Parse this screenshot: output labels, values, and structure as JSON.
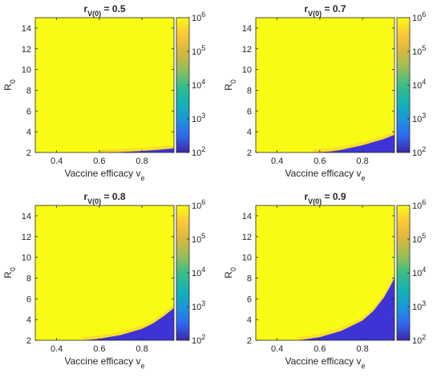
{
  "figure": {
    "panel_count": 4
  },
  "chart_data": [
    {
      "type": "heatmap",
      "title": "r",
      "title_sub": "V(0)",
      "title_value": " = 0.5",
      "xlabel": "Vaccine efficacy v",
      "xlabel_sub": "e",
      "ylabel": "R",
      "ylabel_sub": "0",
      "xlim": [
        0.3,
        0.95
      ],
      "ylim": [
        2,
        15
      ],
      "xticks": [
        0.4,
        0.6,
        0.8
      ],
      "xtick_labels": [
        "0.4",
        "0.6",
        "0.8"
      ],
      "yticks": [
        2,
        4,
        6,
        8,
        10,
        12,
        14
      ],
      "ytick_labels": [
        "2",
        "4",
        "6",
        "8",
        "10",
        "12",
        "14"
      ],
      "color_scale": "log",
      "colorbar_range": [
        100,
        1000000
      ],
      "colorbar_ticks": [
        {
          "base": "10",
          "exp": "2"
        },
        {
          "base": "10",
          "exp": "3"
        },
        {
          "base": "10",
          "exp": "4"
        },
        {
          "base": "10",
          "exp": "5"
        },
        {
          "base": "10",
          "exp": "6"
        }
      ],
      "colormap": [
        "#3e26a8",
        "#2f69f1",
        "#1a98d9",
        "#13b4b1",
        "#3bbd86",
        "#98be57",
        "#d8b83f",
        "#fcc737",
        "#f9fb15"
      ],
      "high_region_color": "#f9fb15",
      "low_region_color": "#3e34d6",
      "boundary": {
        "x": [
          0.6,
          0.7,
          0.8,
          0.9,
          0.95
        ],
        "y": [
          2.0,
          2.05,
          2.15,
          2.3,
          2.4
        ]
      }
    },
    {
      "type": "heatmap",
      "title": "r",
      "title_sub": "V(0)",
      "title_value": " = 0.7",
      "xlabel": "Vaccine efficacy v",
      "xlabel_sub": "e",
      "ylabel": "R",
      "ylabel_sub": "0",
      "xlim": [
        0.3,
        0.95
      ],
      "ylim": [
        2,
        15
      ],
      "xticks": [
        0.4,
        0.6,
        0.8
      ],
      "xtick_labels": [
        "0.4",
        "0.6",
        "0.8"
      ],
      "yticks": [
        2,
        4,
        6,
        8,
        10,
        12,
        14
      ],
      "ytick_labels": [
        "2",
        "4",
        "6",
        "8",
        "10",
        "12",
        "14"
      ],
      "color_scale": "log",
      "colorbar_range": [
        100,
        1000000
      ],
      "colorbar_ticks": [
        {
          "base": "10",
          "exp": "2"
        },
        {
          "base": "10",
          "exp": "3"
        },
        {
          "base": "10",
          "exp": "4"
        },
        {
          "base": "10",
          "exp": "5"
        },
        {
          "base": "10",
          "exp": "6"
        }
      ],
      "colormap": [
        "#3e26a8",
        "#2f69f1",
        "#1a98d9",
        "#13b4b1",
        "#3bbd86",
        "#98be57",
        "#d8b83f",
        "#fcc737",
        "#f9fb15"
      ],
      "high_region_color": "#f9fb15",
      "low_region_color": "#3e34d6",
      "boundary": {
        "x": [
          0.57,
          0.65,
          0.7,
          0.8,
          0.9,
          0.95
        ],
        "y": [
          2.0,
          2.1,
          2.25,
          2.7,
          3.3,
          3.7
        ]
      }
    },
    {
      "type": "heatmap",
      "title": "r",
      "title_sub": "V(0)",
      "title_value": " = 0.8",
      "xlabel": "Vaccine efficacy v",
      "xlabel_sub": "e",
      "ylabel": "R",
      "ylabel_sub": "0",
      "xlim": [
        0.3,
        0.95
      ],
      "ylim": [
        2,
        15
      ],
      "xticks": [
        0.4,
        0.6,
        0.8
      ],
      "xtick_labels": [
        "0.4",
        "0.6",
        "0.8"
      ],
      "yticks": [
        2,
        4,
        6,
        8,
        10,
        12,
        14
      ],
      "ytick_labels": [
        "2",
        "4",
        "6",
        "8",
        "10",
        "12",
        "14"
      ],
      "color_scale": "log",
      "colorbar_range": [
        100,
        1000000
      ],
      "colorbar_ticks": [
        {
          "base": "10",
          "exp": "2"
        },
        {
          "base": "10",
          "exp": "3"
        },
        {
          "base": "10",
          "exp": "4"
        },
        {
          "base": "10",
          "exp": "5"
        },
        {
          "base": "10",
          "exp": "6"
        }
      ],
      "colormap": [
        "#3e26a8",
        "#2f69f1",
        "#1a98d9",
        "#13b4b1",
        "#3bbd86",
        "#98be57",
        "#d8b83f",
        "#fcc737",
        "#f9fb15"
      ],
      "high_region_color": "#f9fb15",
      "low_region_color": "#3e34d6",
      "boundary": {
        "x": [
          0.52,
          0.6,
          0.7,
          0.8,
          0.85,
          0.9,
          0.95
        ],
        "y": [
          2.0,
          2.15,
          2.5,
          3.1,
          3.6,
          4.3,
          5.1
        ]
      }
    },
    {
      "type": "heatmap",
      "title": "r",
      "title_sub": "V(0)",
      "title_value": " = 0.9",
      "xlabel": "Vaccine efficacy v",
      "xlabel_sub": "e",
      "ylabel": "R",
      "ylabel_sub": "0",
      "xlim": [
        0.3,
        0.95
      ],
      "ylim": [
        2,
        15
      ],
      "xticks": [
        0.4,
        0.6,
        0.8
      ],
      "xtick_labels": [
        "0.4",
        "0.6",
        "0.8"
      ],
      "yticks": [
        2,
        4,
        6,
        8,
        10,
        12,
        14
      ],
      "ytick_labels": [
        "2",
        "4",
        "6",
        "8",
        "10",
        "12",
        "14"
      ],
      "color_scale": "log",
      "colorbar_range": [
        100,
        1000000
      ],
      "colorbar_ticks": [
        {
          "base": "10",
          "exp": "2"
        },
        {
          "base": "10",
          "exp": "3"
        },
        {
          "base": "10",
          "exp": "4"
        },
        {
          "base": "10",
          "exp": "5"
        },
        {
          "base": "10",
          "exp": "6"
        }
      ],
      "colormap": [
        "#3e26a8",
        "#2f69f1",
        "#1a98d9",
        "#13b4b1",
        "#3bbd86",
        "#98be57",
        "#d8b83f",
        "#fcc737",
        "#f9fb15"
      ],
      "high_region_color": "#f9fb15",
      "low_region_color": "#3e34d6",
      "boundary": {
        "x": [
          0.5,
          0.6,
          0.7,
          0.8,
          0.85,
          0.9,
          0.93,
          0.95
        ],
        "y": [
          2.0,
          2.3,
          2.9,
          3.9,
          4.8,
          6.1,
          7.2,
          8.0
        ]
      }
    }
  ]
}
